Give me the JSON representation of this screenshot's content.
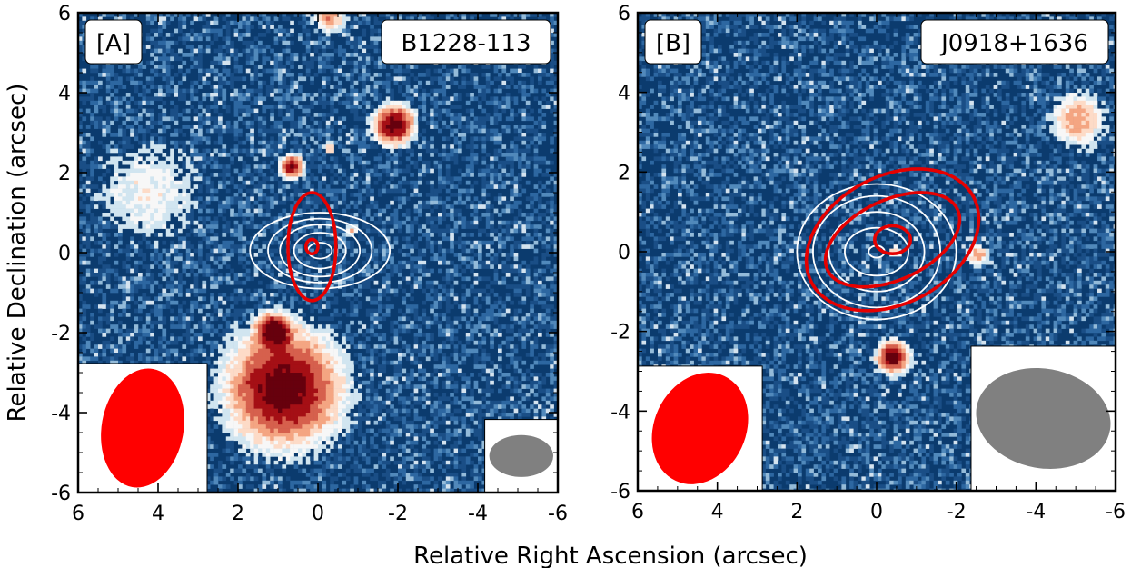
{
  "figure": {
    "xlabel": "Relative Right Ascension (arcsec)",
    "ylabel": "Relative Declination (arcsec)"
  },
  "chart_data": [
    {
      "type": "image",
      "panel_label": "[A]",
      "source_name": "B1228-113",
      "xlim": [
        6,
        -6
      ],
      "ylim": [
        -6,
        6
      ],
      "xticks": [
        "6",
        "4",
        "2",
        "0",
        "-2",
        "-4",
        "-6"
      ],
      "yticks": [
        "-6",
        "-4",
        "-2",
        "0",
        "2",
        "4",
        "6"
      ],
      "background_color": "#0b3b6e",
      "sources": [
        {
          "x": -1.9,
          "y": 3.2,
          "r": 0.32,
          "strength": 1.0
        },
        {
          "x": 0.65,
          "y": 2.15,
          "r": 0.18,
          "strength": 0.9
        },
        {
          "x": -0.3,
          "y": 2.6,
          "r": 0.1,
          "strength": 0.4
        },
        {
          "x": -0.3,
          "y": 5.9,
          "r": 0.25,
          "strength": 0.5
        },
        {
          "x": 1.1,
          "y": -1.95,
          "r": 0.25,
          "strength": 1.0
        },
        {
          "x": 0.85,
          "y": -3.4,
          "r": 0.9,
          "strength": 1.0
        },
        {
          "x": -0.85,
          "y": 0.55,
          "r": 0.1,
          "strength": 0.4
        },
        {
          "x": 4.25,
          "y": 1.5,
          "r": 0.9,
          "strength": 0.25
        }
      ],
      "radio_contours": {
        "color": "#e60000",
        "center": [
          0.15,
          0.15
        ],
        "rings": [
          {
            "rx": 0.15,
            "ry": 0.18,
            "angle": 0
          },
          {
            "rx": 0.6,
            "ry": 1.35,
            "angle": 0
          }
        ]
      },
      "optical_contours": {
        "color": "#ffffff",
        "center": [
          -0.05,
          0.05
        ],
        "rings": [
          {
            "rx": 0.3,
            "ry": 0.2,
            "angle": 0
          },
          {
            "rx": 0.65,
            "ry": 0.45,
            "angle": 0
          },
          {
            "rx": 1.0,
            "ry": 0.65,
            "angle": 0
          },
          {
            "rx": 1.3,
            "ry": 0.8,
            "angle": 0
          },
          {
            "rx": 1.75,
            "ry": 0.95,
            "angle": 0
          }
        ]
      },
      "beams": {
        "radio": {
          "color": "#ff0000",
          "bmaj": 3.0,
          "bmin": 2.05,
          "pa": 10
        },
        "optical": {
          "color": "#808080",
          "bmaj": 1.6,
          "bmin": 1.05,
          "pa": 90
        }
      }
    },
    {
      "type": "image",
      "panel_label": "[B]",
      "source_name": "J0918+1636",
      "xlim": [
        6,
        -6
      ],
      "ylim": [
        -6,
        6
      ],
      "xticks": [
        "6",
        "4",
        "2",
        "0",
        "-2",
        "-4",
        "-6"
      ],
      "yticks": [
        "-6",
        "-4",
        "-2",
        "0",
        "2",
        "4",
        "6"
      ],
      "background_color": "#0b3b6e",
      "sources": [
        {
          "x": -0.4,
          "y": -2.65,
          "r": 0.25,
          "strength": 1.0
        },
        {
          "x": -2.55,
          "y": -0.1,
          "r": 0.18,
          "strength": 0.45
        },
        {
          "x": -0.45,
          "y": 0.0,
          "r": 0.12,
          "strength": 0.35
        },
        {
          "x": -5.05,
          "y": 3.3,
          "r": 0.45,
          "strength": 0.45
        }
      ],
      "radio_contours": {
        "color": "#e60000",
        "center": [
          -0.4,
          0.3
        ],
        "rings": [
          {
            "rx": 0.45,
            "ry": 0.35,
            "angle": 0
          },
          {
            "rx": 1.8,
            "ry": 1.0,
            "angle": -25
          },
          {
            "rx": 2.3,
            "ry": 1.6,
            "angle": -28
          }
        ]
      },
      "optical_contours": {
        "color": "#ffffff",
        "center": [
          0.0,
          0.0
        ],
        "rings": [
          {
            "rx": 0.2,
            "ry": 0.15,
            "angle": 0
          },
          {
            "rx": 0.8,
            "ry": 0.6,
            "angle": 0
          },
          {
            "rx": 1.2,
            "ry": 1.0,
            "angle": 0
          },
          {
            "rx": 1.6,
            "ry": 1.4,
            "angle": 0
          },
          {
            "rx": 2.0,
            "ry": 1.7,
            "angle": 0
          }
        ]
      },
      "beams": {
        "radio": {
          "color": "#ff0000",
          "bmaj": 2.9,
          "bmin": 2.3,
          "pa": 25
        },
        "optical": {
          "color": "#808080",
          "bmaj": 3.4,
          "bmin": 2.5,
          "pa": 100
        }
      }
    }
  ]
}
